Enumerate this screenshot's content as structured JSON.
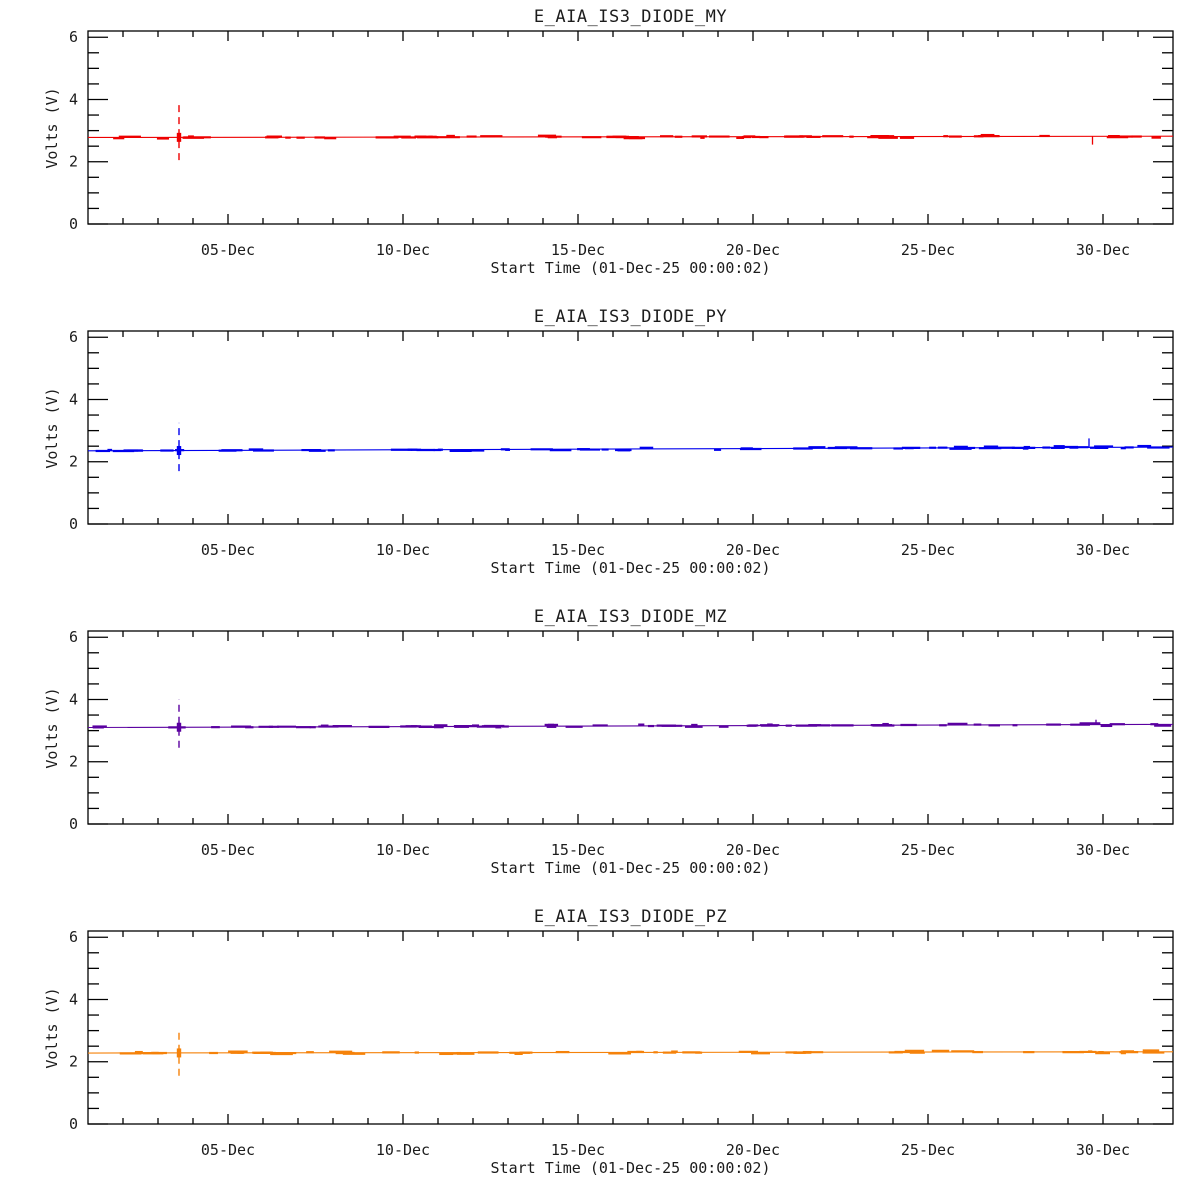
{
  "figure": {
    "background": "#ffffff",
    "axis_color": "#000000",
    "panel_count": 4
  },
  "chart_data": [
    {
      "type": "line",
      "title": "E_AIA_IS3_DIODE_MY",
      "xlabel": "Start Time (01-Dec-25 00:00:02)",
      "ylabel": "Volts (V)",
      "color": "#ee0000",
      "ylim": [
        0,
        6.2
      ],
      "y_major_ticks": [
        0,
        2,
        4,
        6
      ],
      "y_minor_step": 0.5,
      "x_range_days": [
        1,
        32
      ],
      "x_tick_days": [
        5,
        10,
        15,
        20,
        25,
        30
      ],
      "x_tick_labels": [
        "05-Dec",
        "10-Dec",
        "15-Dec",
        "20-Dec",
        "25-Dec",
        "30-Dec"
      ],
      "x_minor_step_days": 1,
      "grid": "off",
      "legend": "none",
      "baseline_start_volts": 2.78,
      "baseline_end_volts": 2.82,
      "spike": {
        "day": 3.6,
        "min_volts": 2.05,
        "max_volts": 3.85,
        "style": "dashed-vertical"
      },
      "events": [
        {
          "day": 29.7,
          "volts": 2.55,
          "direction": "down"
        }
      ]
    },
    {
      "type": "line",
      "title": "E_AIA_IS3_DIODE_PY",
      "xlabel": "Start Time (01-Dec-25 00:00:02)",
      "ylabel": "Volts (V)",
      "color": "#0000ee",
      "ylim": [
        0,
        6.2
      ],
      "y_major_ticks": [
        0,
        2,
        4,
        6
      ],
      "y_minor_step": 0.5,
      "x_range_days": [
        1,
        32
      ],
      "x_tick_days": [
        5,
        10,
        15,
        20,
        25,
        30
      ],
      "x_tick_labels": [
        "05-Dec",
        "10-Dec",
        "15-Dec",
        "20-Dec",
        "25-Dec",
        "30-Dec"
      ],
      "x_minor_step_days": 1,
      "grid": "off",
      "legend": "none",
      "baseline_start_volts": 2.35,
      "baseline_end_volts": 2.47,
      "spike": {
        "day": 3.6,
        "min_volts": 1.7,
        "max_volts": 3.25,
        "style": "dashed-vertical"
      },
      "events": [
        {
          "day": 29.6,
          "volts": 2.75,
          "direction": "up"
        }
      ]
    },
    {
      "type": "line",
      "title": "E_AIA_IS3_DIODE_MZ",
      "xlabel": "Start Time (01-Dec-25 00:00:02)",
      "ylabel": "Volts (V)",
      "color": "#5a00a0",
      "ylim": [
        0,
        6.2
      ],
      "y_major_ticks": [
        0,
        2,
        4,
        6
      ],
      "y_minor_step": 0.5,
      "x_range_days": [
        1,
        32
      ],
      "x_tick_days": [
        5,
        10,
        15,
        20,
        25,
        30
      ],
      "x_tick_labels": [
        "05-Dec",
        "10-Dec",
        "15-Dec",
        "20-Dec",
        "25-Dec",
        "30-Dec"
      ],
      "x_minor_step_days": 1,
      "grid": "off",
      "legend": "none",
      "baseline_start_volts": 3.1,
      "baseline_end_volts": 3.2,
      "spike": {
        "day": 3.6,
        "min_volts": 2.45,
        "max_volts": 4.0,
        "style": "dashed-vertical"
      },
      "events": [
        {
          "day": 29.8,
          "volts": 3.35,
          "direction": "up"
        }
      ]
    },
    {
      "type": "line",
      "title": "E_AIA_IS3_DIODE_PZ",
      "xlabel": "Start Time (01-Dec-25 00:00:02)",
      "ylabel": "Volts (V)",
      "color": "#f5820a",
      "ylim": [
        0,
        6.2
      ],
      "y_major_ticks": [
        0,
        2,
        4,
        6
      ],
      "y_minor_step": 0.5,
      "x_range_days": [
        1,
        32
      ],
      "x_tick_days": [
        5,
        10,
        15,
        20,
        25,
        30
      ],
      "x_tick_labels": [
        "05-Dec",
        "10-Dec",
        "15-Dec",
        "20-Dec",
        "25-Dec",
        "30-Dec"
      ],
      "x_minor_step_days": 1,
      "grid": "off",
      "legend": "none",
      "baseline_start_volts": 2.28,
      "baseline_end_volts": 2.32,
      "spike": {
        "day": 3.6,
        "min_volts": 1.55,
        "max_volts": 3.0,
        "style": "dashed-vertical"
      },
      "events": []
    }
  ]
}
